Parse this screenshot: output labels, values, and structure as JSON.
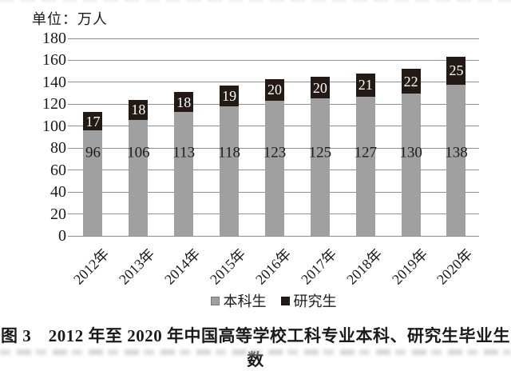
{
  "unit_label": "单位：万人",
  "caption": "图 3　2012 年至 2020 年中国高等学校工科专业本科、研究生毕业生数",
  "legend": {
    "items": [
      {
        "label": "本科生",
        "color": "#a0a0a0"
      },
      {
        "label": "研究生",
        "color": "#241a15"
      }
    ]
  },
  "chart_data": {
    "type": "bar",
    "stacked": true,
    "title": "图 3　2012 年至 2020 年中国高等学校工科专业本科、研究生毕业生数",
    "unit": "单位：万人",
    "categories": [
      "2012年",
      "2013年",
      "2014年",
      "2015年",
      "2016年",
      "2017年",
      "2018年",
      "2019年",
      "2020年"
    ],
    "series": [
      {
        "name": "本科生",
        "color": "#a0a0a0",
        "label_color": "#1c1c1c",
        "values": [
          96,
          106,
          113,
          118,
          123,
          125,
          127,
          130,
          138
        ]
      },
      {
        "name": "研究生",
        "color": "#241a15",
        "label_color": "#ffffff",
        "values": [
          17,
          18,
          18,
          19,
          20,
          20,
          21,
          22,
          25
        ]
      }
    ],
    "ylim": [
      0,
      180
    ],
    "ytick_step": 20,
    "yticks": [
      "0",
      "20",
      "40",
      "60",
      "80",
      "100",
      "120",
      "140",
      "160",
      "180"
    ],
    "grid": true,
    "gridline_color": "#8f8f8f",
    "legend_position": "bottom"
  }
}
